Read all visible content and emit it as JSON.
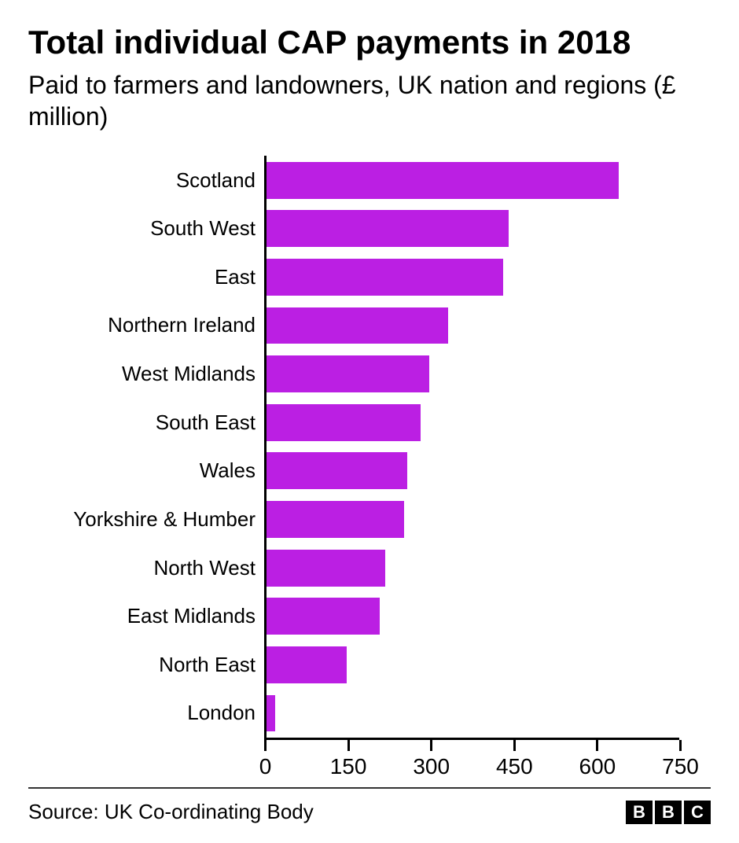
{
  "title": "Total individual CAP payments in 2018",
  "subtitle": "Paid to farmers and landowners, UK nation and regions (£ million)",
  "source": "Source: UK Co-ordinating Body",
  "logo": {
    "letters": [
      "B",
      "B",
      "C"
    ]
  },
  "chart": {
    "type": "bar-horizontal",
    "bar_color": "#bb1fe3",
    "axis_color": "#000000",
    "background_color": "#ffffff",
    "title_fontsize": 42,
    "subtitle_fontsize": 32,
    "label_fontsize": 26,
    "tick_fontsize": 28,
    "source_fontsize": 26,
    "xlim": [
      0,
      750
    ],
    "xticks": [
      0,
      150,
      300,
      450,
      600,
      750
    ],
    "bar_height_ratio": 0.76,
    "categories": [
      "Scotland",
      "South West",
      "East",
      "Northern Ireland",
      "West Midlands",
      "South East",
      "Wales",
      "Yorkshire & Humber",
      "North West",
      "East Midlands",
      "North East",
      "London"
    ],
    "values": [
      640,
      440,
      430,
      330,
      295,
      280,
      255,
      250,
      215,
      205,
      145,
      15
    ]
  }
}
